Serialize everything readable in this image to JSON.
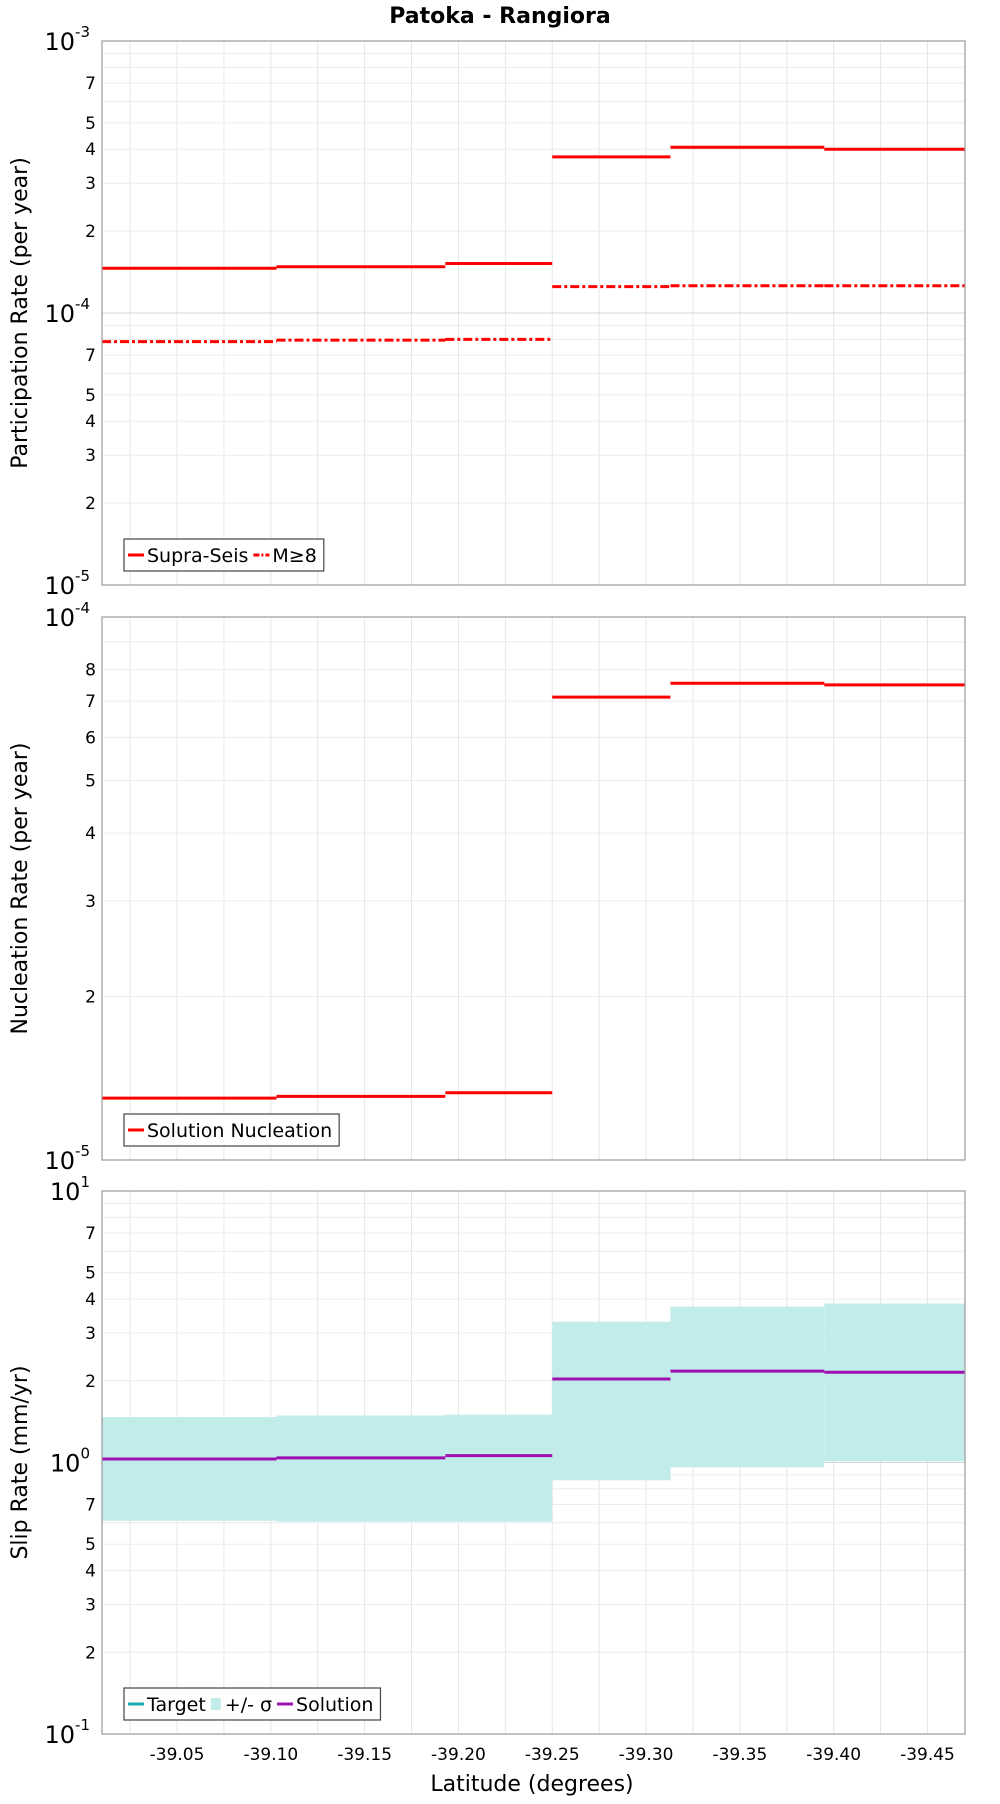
{
  "figure": {
    "title": "Patoka - Rangiora",
    "xlabel": "Latitude (degrees)",
    "x_range": [
      -39.01,
      -39.47
    ],
    "x_ticks": [
      -39.05,
      -39.1,
      -39.15,
      -39.2,
      -39.25,
      -39.3,
      -39.35,
      -39.4,
      -39.45
    ],
    "x_tick_labels": [
      "-39.05",
      "-39.10",
      "-39.15",
      "-39.20",
      "-39.25",
      "-39.30",
      "-39.35",
      "-39.40",
      "-39.45"
    ],
    "x_gridlines": [
      -39.025,
      -39.05,
      -39.075,
      -39.1,
      -39.125,
      -39.15,
      -39.175,
      -39.2,
      -39.225,
      -39.25,
      -39.275,
      -39.3,
      -39.325,
      -39.35,
      -39.375,
      -39.4,
      -39.425,
      -39.45
    ]
  },
  "chart_data": [
    {
      "type": "line",
      "step": true,
      "ylabel": "Participation Rate (per year)",
      "yscale": "log",
      "ylim": [
        1e-05,
        0.001
      ],
      "grid": true,
      "legend_position": "bottom-left",
      "y_decades": [
        {
          "value": 0.001,
          "mantissa": "10",
          "exponent": "-3"
        },
        {
          "value": 0.0001,
          "mantissa": "10",
          "exponent": "-4"
        },
        {
          "value": 1e-05,
          "mantissa": "10",
          "exponent": "-5"
        }
      ],
      "y_minor_labels": [
        {
          "value": 0.0007,
          "label": "7"
        },
        {
          "value": 0.0005,
          "label": "5"
        },
        {
          "value": 0.0004,
          "label": "4"
        },
        {
          "value": 0.0003,
          "label": "3"
        },
        {
          "value": 0.0002,
          "label": "2"
        },
        {
          "value": 7e-05,
          "label": "7"
        },
        {
          "value": 5e-05,
          "label": "5"
        },
        {
          "value": 4e-05,
          "label": "4"
        },
        {
          "value": 3e-05,
          "label": "3"
        },
        {
          "value": 2e-05,
          "label": "2"
        }
      ],
      "series": [
        {
          "name": "Supra-Seis",
          "style": "solid",
          "color": "#ff0000",
          "segments": [
            {
              "x0": -39.01,
              "x1": -39.103,
              "y": 0.000146
            },
            {
              "x0": -39.103,
              "x1": -39.193,
              "y": 0.000148
            },
            {
              "x0": -39.193,
              "x1": -39.25,
              "y": 0.000152
            },
            {
              "x0": -39.25,
              "x1": -39.313,
              "y": 0.000375
            },
            {
              "x0": -39.313,
              "x1": -39.395,
              "y": 0.000407
            },
            {
              "x0": -39.395,
              "x1": -39.47,
              "y": 0.0004
            }
          ]
        },
        {
          "name": "M≥8",
          "style": "dashdot",
          "color": "#ff0000",
          "segments": [
            {
              "x0": -39.01,
              "x1": -39.103,
              "y": 7.85e-05
            },
            {
              "x0": -39.103,
              "x1": -39.193,
              "y": 7.95e-05
            },
            {
              "x0": -39.193,
              "x1": -39.25,
              "y": 8e-05
            },
            {
              "x0": -39.25,
              "x1": -39.313,
              "y": 0.000125
            },
            {
              "x0": -39.313,
              "x1": -39.395,
              "y": 0.000126
            },
            {
              "x0": -39.395,
              "x1": -39.47,
              "y": 0.000126
            }
          ]
        }
      ]
    },
    {
      "type": "line",
      "step": true,
      "ylabel": "Nucleation Rate (per year)",
      "yscale": "log",
      "ylim": [
        1e-05,
        0.0001
      ],
      "grid": true,
      "legend_position": "bottom-left",
      "y_decades": [
        {
          "value": 0.0001,
          "mantissa": "10",
          "exponent": "-4"
        },
        {
          "value": 1e-05,
          "mantissa": "10",
          "exponent": "-5"
        }
      ],
      "y_minor_labels": [
        {
          "value": 8e-05,
          "label": "8"
        },
        {
          "value": 7e-05,
          "label": "7"
        },
        {
          "value": 6e-05,
          "label": "6"
        },
        {
          "value": 5e-05,
          "label": "5"
        },
        {
          "value": 4e-05,
          "label": "4"
        },
        {
          "value": 3e-05,
          "label": "3"
        },
        {
          "value": 2e-05,
          "label": "2"
        }
      ],
      "series": [
        {
          "name": "Solution Nucleation",
          "style": "solid",
          "color": "#ff0000",
          "segments": [
            {
              "x0": -39.01,
              "x1": -39.103,
              "y": 1.3e-05
            },
            {
              "x0": -39.103,
              "x1": -39.193,
              "y": 1.31e-05
            },
            {
              "x0": -39.193,
              "x1": -39.25,
              "y": 1.33e-05
            },
            {
              "x0": -39.25,
              "x1": -39.313,
              "y": 7.12e-05
            },
            {
              "x0": -39.313,
              "x1": -39.395,
              "y": 7.55e-05
            },
            {
              "x0": -39.395,
              "x1": -39.47,
              "y": 7.5e-05
            }
          ]
        }
      ]
    },
    {
      "type": "line",
      "step": true,
      "ylabel": "Slip Rate (mm/yr)",
      "yscale": "log",
      "ylim": [
        0.1,
        10
      ],
      "grid": true,
      "legend_position": "bottom-left",
      "y_decades": [
        {
          "value": 10,
          "mantissa": "10",
          "exponent": "1"
        },
        {
          "value": 1,
          "mantissa": "10",
          "exponent": "0"
        },
        {
          "value": 0.1,
          "mantissa": "10",
          "exponent": "-1"
        }
      ],
      "y_minor_labels": [
        {
          "value": 7,
          "label": "7"
        },
        {
          "value": 5,
          "label": "5"
        },
        {
          "value": 4,
          "label": "4"
        },
        {
          "value": 3,
          "label": "3"
        },
        {
          "value": 2,
          "label": "2"
        },
        {
          "value": 0.7,
          "label": "7"
        },
        {
          "value": 0.5,
          "label": "5"
        },
        {
          "value": 0.4,
          "label": "4"
        },
        {
          "value": 0.3,
          "label": "3"
        },
        {
          "value": 0.2,
          "label": "2"
        }
      ],
      "series": [
        {
          "name": "Target",
          "style": "solid",
          "color": "#1aaaaa",
          "segments": [
            {
              "x0": -39.01,
              "x1": -39.103,
              "y": 1.03
            },
            {
              "x0": -39.103,
              "x1": -39.193,
              "y": 1.04
            },
            {
              "x0": -39.193,
              "x1": -39.25,
              "y": 1.05
            },
            {
              "x0": -39.25,
              "x1": -39.313,
              "y": 2.1
            },
            {
              "x0": -39.313,
              "x1": -39.395,
              "y": 2.37
            },
            {
              "x0": -39.395,
              "x1": -39.47,
              "y": 2.47
            }
          ]
        },
        {
          "name": "+/- σ",
          "style": "band",
          "color": "#c2ecea",
          "segments": [
            {
              "x0": -39.01,
              "x1": -39.103,
              "low": 0.61,
              "high": 1.47
            },
            {
              "x0": -39.103,
              "x1": -39.193,
              "low": 0.605,
              "high": 1.49
            },
            {
              "x0": -39.193,
              "x1": -39.25,
              "low": 0.605,
              "high": 1.5
            },
            {
              "x0": -39.25,
              "x1": -39.313,
              "low": 0.86,
              "high": 3.3
            },
            {
              "x0": -39.313,
              "x1": -39.395,
              "low": 0.96,
              "high": 3.75
            },
            {
              "x0": -39.395,
              "x1": -39.47,
              "low": 1.01,
              "high": 3.85
            }
          ]
        },
        {
          "name": "Solution",
          "style": "solid",
          "color": "#a010b0",
          "segments": [
            {
              "x0": -39.01,
              "x1": -39.103,
              "y": 1.03
            },
            {
              "x0": -39.103,
              "x1": -39.193,
              "y": 1.04
            },
            {
              "x0": -39.193,
              "x1": -39.25,
              "y": 1.06
            },
            {
              "x0": -39.25,
              "x1": -39.313,
              "y": 2.03
            },
            {
              "x0": -39.313,
              "x1": -39.395,
              "y": 2.17
            },
            {
              "x0": -39.395,
              "x1": -39.47,
              "y": 2.15
            }
          ]
        }
      ]
    }
  ]
}
